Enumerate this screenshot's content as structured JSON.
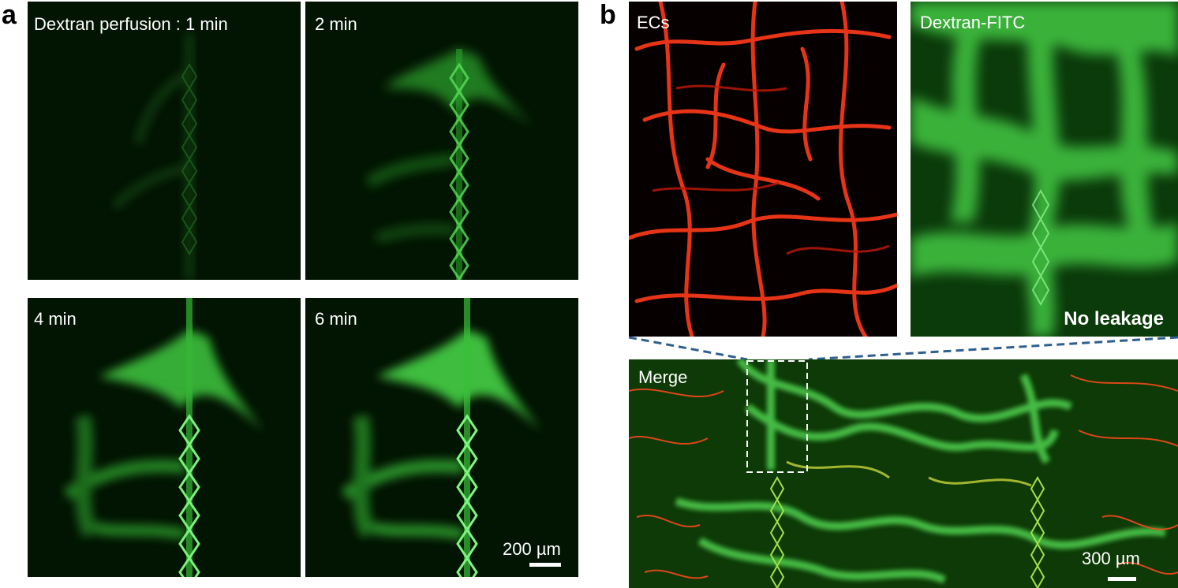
{
  "panel_a": {
    "letter": "a",
    "tiles": [
      {
        "label": "Dextran perfusion : 1 min"
      },
      {
        "label": "2 min"
      },
      {
        "label": "4 min"
      },
      {
        "label": "6 min"
      }
    ],
    "scale_bar": "200 µm"
  },
  "panel_b": {
    "letter": "b",
    "tiles": [
      {
        "label": "ECs"
      },
      {
        "label": "Dextran-FITC",
        "annotation": "No leakage"
      },
      {
        "label": "Merge"
      }
    ],
    "scale_bar": "300 µm"
  },
  "colors": {
    "fitc_green": "#3fd03f",
    "ec_red": "#ff3a1a",
    "inset_dash": "#ffffff",
    "connector_dash": "#2f5f8f"
  }
}
